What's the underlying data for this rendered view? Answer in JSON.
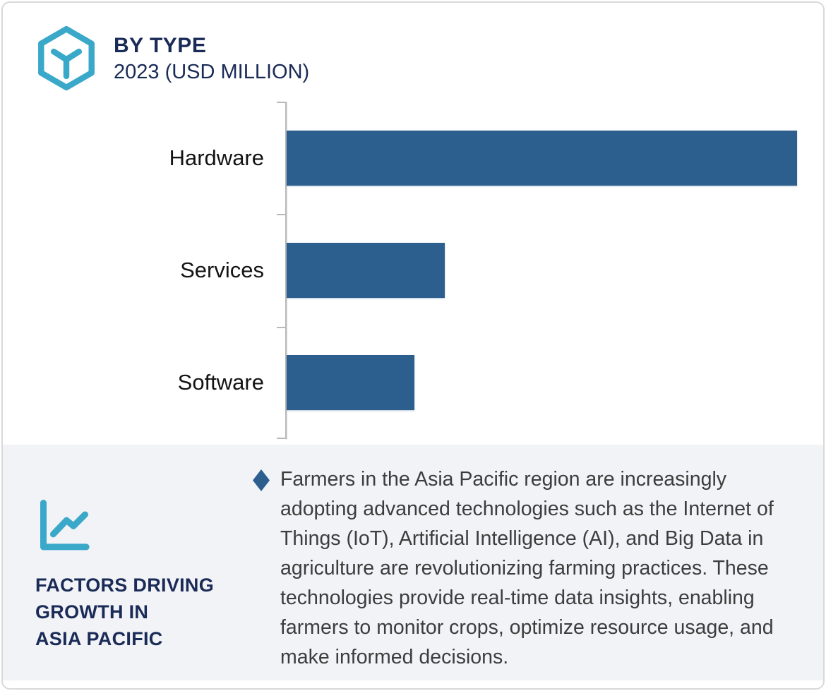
{
  "header": {
    "title": "BY TYPE",
    "subtitle": "2023 (USD MILLION)",
    "icon": "cube-hexagon-icon"
  },
  "chart_data": {
    "type": "bar",
    "orientation": "horizontal",
    "title": "BY TYPE",
    "subtitle": "2023 (USD MILLION)",
    "categories": [
      "Hardware",
      "Services",
      "Software"
    ],
    "values": [
      100,
      31,
      25
    ],
    "values_note": "relative bar lengths as % of longest bar; no numeric axis or data labels are shown in the figure",
    "xlabel": "",
    "ylabel": "",
    "grid": false,
    "legend": false,
    "bar_color": "#2d5f8e",
    "axis_color": "#b9b9b9"
  },
  "footer": {
    "icon": "line-chart-icon",
    "heading_lines": [
      "FACTORS DRIVING",
      "GROWTH IN",
      "ASIA PACIFIC"
    ],
    "bullet": {
      "marker": "diamond-bullet",
      "text": "Farmers in the Asia Pacific region are increasingly adopting advanced technologies such as the Internet of Things (IoT), Artificial Intelligence (AI), and Big Data in agriculture are revolutionizing farming practices. These technologies provide real-time data insights, enabling farmers to monitor crops, optimize resource usage, and make informed decisions."
    }
  },
  "colors": {
    "navy": "#1a2b57",
    "bar_blue": "#2d5f8e",
    "teal": "#3aa9c9",
    "axis_gray": "#b9b9b9",
    "footer_bg": "#f2f3f7",
    "body_text": "#3d3d3d"
  }
}
